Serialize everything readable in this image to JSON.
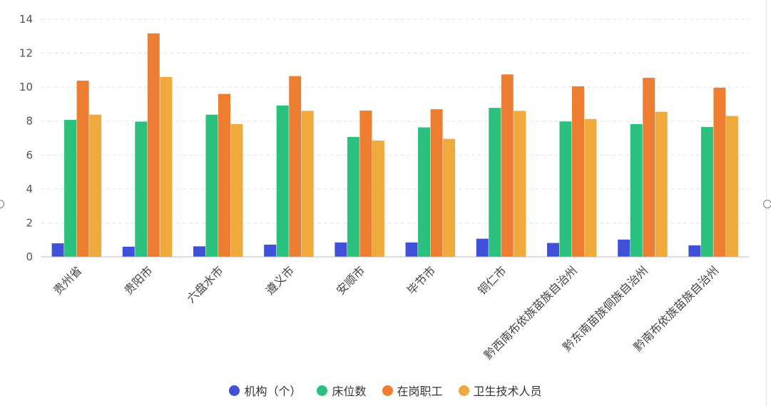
{
  "chart_data": {
    "type": "bar",
    "categories": [
      "贵州省",
      "贵阳市",
      "六盘水市",
      "遵义市",
      "安顺市",
      "毕节市",
      "铜仁市",
      "黔西南布依族苗族自治州",
      "黔东南苗族侗族自治州",
      "黔南布依族苗族自治州"
    ],
    "series": [
      {
        "name": "机构（个）",
        "color": "#4050d8",
        "values": [
          0.8,
          0.6,
          0.62,
          0.72,
          0.85,
          0.85,
          1.07,
          0.82,
          1.02,
          0.68
        ]
      },
      {
        "name": "床位数",
        "color": "#2ac07e",
        "values": [
          8.07,
          7.97,
          8.38,
          8.92,
          7.07,
          7.63,
          8.78,
          7.98,
          7.82,
          7.65
        ]
      },
      {
        "name": "在岗职工",
        "color": "#ed7d31",
        "values": [
          10.38,
          13.17,
          9.6,
          10.65,
          8.62,
          8.7,
          10.75,
          10.05,
          10.55,
          9.97
        ]
      },
      {
        "name": "卫生技术人员",
        "color": "#f0a93b",
        "values": [
          8.38,
          10.6,
          7.82,
          8.6,
          6.85,
          6.95,
          8.6,
          8.12,
          8.55,
          8.3
        ]
      }
    ],
    "ylim": [
      0,
      14
    ],
    "yticks": [
      "0",
      "2",
      "4",
      "6",
      "8",
      "10",
      "12",
      "14"
    ],
    "grid": true,
    "legend_position": "bottom-center"
  }
}
